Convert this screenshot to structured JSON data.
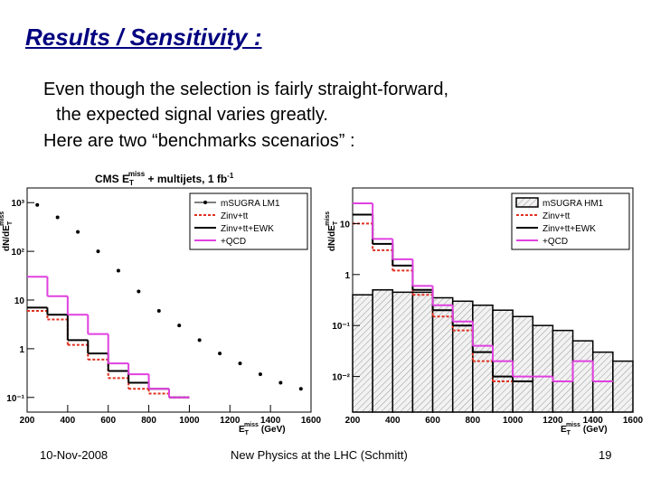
{
  "slide": {
    "title": "Results / Sensitivity :",
    "body": [
      "Even though the selection is fairly straight-forward,",
      "the expected signal varies greatly.",
      "Here are two “benchmarks scenarios” :"
    ],
    "footer": {
      "date": "10-Nov-2008",
      "center": "New Physics at the LHC (Schmitt)",
      "page": "19"
    },
    "charts": [
      {
        "type": "histogram",
        "title": "CMS E",
        "title_sub": "T",
        "title_sup": "miss",
        "title_rest": " + multijets, 1 fb",
        "title_rest_sup": "-1",
        "y_label": "dN/dE",
        "y_label_sub": "T",
        "y_label_sup": "miss",
        "x_label": "E",
        "x_label_sub": "T",
        "x_label_sup": "miss",
        "x_label_unit": "(GeV)",
        "log_scale": true,
        "xlim": [
          200,
          1600
        ],
        "xticks": [
          200,
          400,
          600,
          800,
          1000,
          1200,
          1400,
          1600
        ],
        "ylim": [
          0.05,
          2000
        ],
        "yticks": [
          {
            "value": 0.1,
            "label": "10⁻¹"
          },
          1,
          10,
          {
            "value": 100,
            "label": "10²"
          },
          {
            "value": 1000,
            "label": "10³"
          }
        ],
        "bins": [
          200,
          300,
          400,
          500,
          600,
          700,
          800,
          900,
          1000,
          1100,
          1200,
          1300,
          1400,
          1500,
          1600
        ],
        "series": [
          {
            "name": "mSUGRA LM1",
            "color": "#000000",
            "style": "points",
            "values": [
              900,
              500,
              250,
              100,
              40,
              15,
              6,
              3,
              1.5,
              0.8,
              0.5,
              0.3,
              0.2,
              0.15
            ]
          },
          {
            "name": "Zinv+tt",
            "color": "#e03020",
            "style": "dashed",
            "values": [
              6,
              4,
              1.2,
              0.6,
              0.25,
              0.15,
              0.12,
              0.1,
              null,
              null,
              null,
              null,
              null,
              null
            ]
          },
          {
            "name": "Zinv+tt+EWK",
            "color": "#000000",
            "style": "solid",
            "values": [
              7,
              5,
              1.5,
              0.8,
              0.35,
              0.2,
              0.15,
              0.1,
              null,
              null,
              null,
              null,
              null,
              null
            ]
          },
          {
            "name": "+QCD",
            "color": "#e040e0",
            "style": "solid",
            "values": [
              30,
              12,
              5,
              2,
              0.5,
              0.3,
              0.15,
              0.1,
              null,
              null,
              null,
              null,
              null,
              null
            ]
          }
        ]
      },
      {
        "type": "histogram",
        "y_label": "dN/dE",
        "y_label_sub": "T",
        "y_label_sup": "miss",
        "x_label": "E",
        "x_label_sub": "T",
        "x_label_sup": "miss",
        "x_label_unit": "(GeV)",
        "log_scale": true,
        "xlim": [
          200,
          1600
        ],
        "xticks": [
          200,
          400,
          600,
          800,
          1000,
          1200,
          1400,
          1600
        ],
        "ylim": [
          0.002,
          50
        ],
        "yticks": [
          {
            "value": 0.01,
            "label": "10⁻²"
          },
          {
            "value": 0.1,
            "label": "10⁻¹"
          },
          1,
          10
        ],
        "bins": [
          200,
          300,
          400,
          500,
          600,
          700,
          800,
          900,
          1000,
          1100,
          1200,
          1300,
          1400,
          1500,
          1600
        ],
        "series": [
          {
            "name": "mSUGRA HM1",
            "color": "#000000",
            "style": "hatched",
            "values": [
              0.4,
              0.5,
              0.45,
              0.45,
              0.35,
              0.3,
              0.25,
              0.2,
              0.15,
              0.1,
              0.08,
              0.05,
              0.03,
              0.02
            ]
          },
          {
            "name": "Zinv+tt",
            "color": "#e03020",
            "style": "dashed",
            "values": [
              10,
              3,
              1.2,
              0.4,
              0.15,
              0.08,
              0.02,
              0.008,
              null,
              null,
              null,
              null,
              null,
              null
            ]
          },
          {
            "name": "Zinv+tt+EWK",
            "color": "#000000",
            "style": "solid",
            "values": [
              15,
              4,
              1.5,
              0.5,
              0.2,
              0.1,
              0.03,
              0.01,
              0.008,
              null,
              null,
              null,
              null,
              null
            ]
          },
          {
            "name": "+QCD",
            "color": "#e040e0",
            "style": "solid",
            "values": [
              25,
              5,
              2,
              0.6,
              0.25,
              0.12,
              0.04,
              0.02,
              0.01,
              0.01,
              0.008,
              0.02,
              0.008,
              null
            ]
          }
        ]
      }
    ]
  }
}
